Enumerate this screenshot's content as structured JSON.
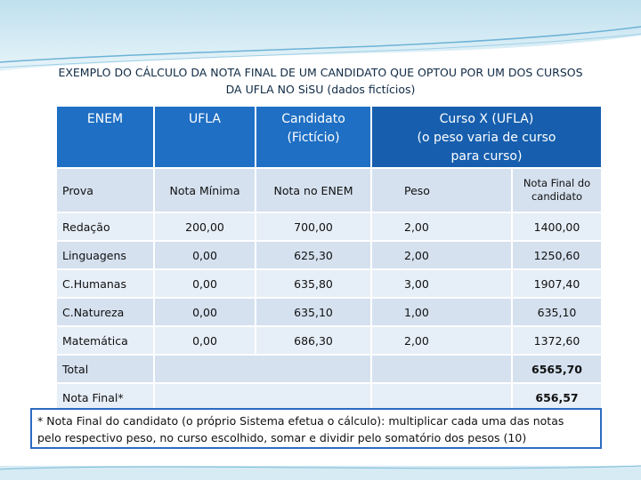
{
  "title": {
    "line1": "EXEMPLO DO CÁLCULO DA NOTA FINAL DE UM CANDIDATO QUE OPTOU POR UM DOS CURSOS",
    "line2": "DA UFLA  NO SiSU (dados fictícios)"
  },
  "header": {
    "enem": "ENEM",
    "ufla": "UFLA",
    "candidato_l1": "Candidato",
    "candidato_l2": "(Fictício)",
    "curso_l1": "Curso X (UFLA)",
    "curso_l2": "(o peso varia de curso",
    "curso_l3": "para curso)"
  },
  "subheader": {
    "prova": "Prova",
    "nota_minima": "Nota Mínima",
    "nota_enem": "Nota  no  ENEM",
    "peso": "Peso",
    "nota_final_l1": "Nota Final do",
    "nota_final_l2": "candidato"
  },
  "rows": [
    {
      "prova": "Redação",
      "minima": "200,00",
      "enem": "700,00",
      "peso": "2,00",
      "final": "1400,00"
    },
    {
      "prova": "Linguagens",
      "minima": "0,00",
      "enem": "625,30",
      "peso": "2,00",
      "final": "1250,60"
    },
    {
      "prova": "C.Humanas",
      "minima": "0,00",
      "enem": "635,80",
      "peso": "3,00",
      "final": "1907,40"
    },
    {
      "prova": "C.Natureza",
      "minima": "0,00",
      "enem": "635,10",
      "peso": "1,00",
      "final": "635,10"
    },
    {
      "prova": "Matemática",
      "minima": "0,00",
      "enem": "686,30",
      "peso": "2,00",
      "final": "1372,60"
    }
  ],
  "total": {
    "label": "Total",
    "value": "6565,70"
  },
  "nota_final": {
    "label": "Nota Final*",
    "value": "656,57"
  },
  "note": {
    "bold": "* Nota Final do candidato (o próprio Sistema efetua o cálculo):",
    "line1_rest": " multiplicar cada uma das notas",
    "line2": "pelo respectivo peso, no curso escolhido, somar e dividir pelo somatório dos pesos (10)"
  },
  "colors": {
    "header_blue": "#1f6fc4",
    "row_light": "#e6eef7",
    "row_mid": "#d5e1ef",
    "note_border": "#2b6cc0"
  }
}
